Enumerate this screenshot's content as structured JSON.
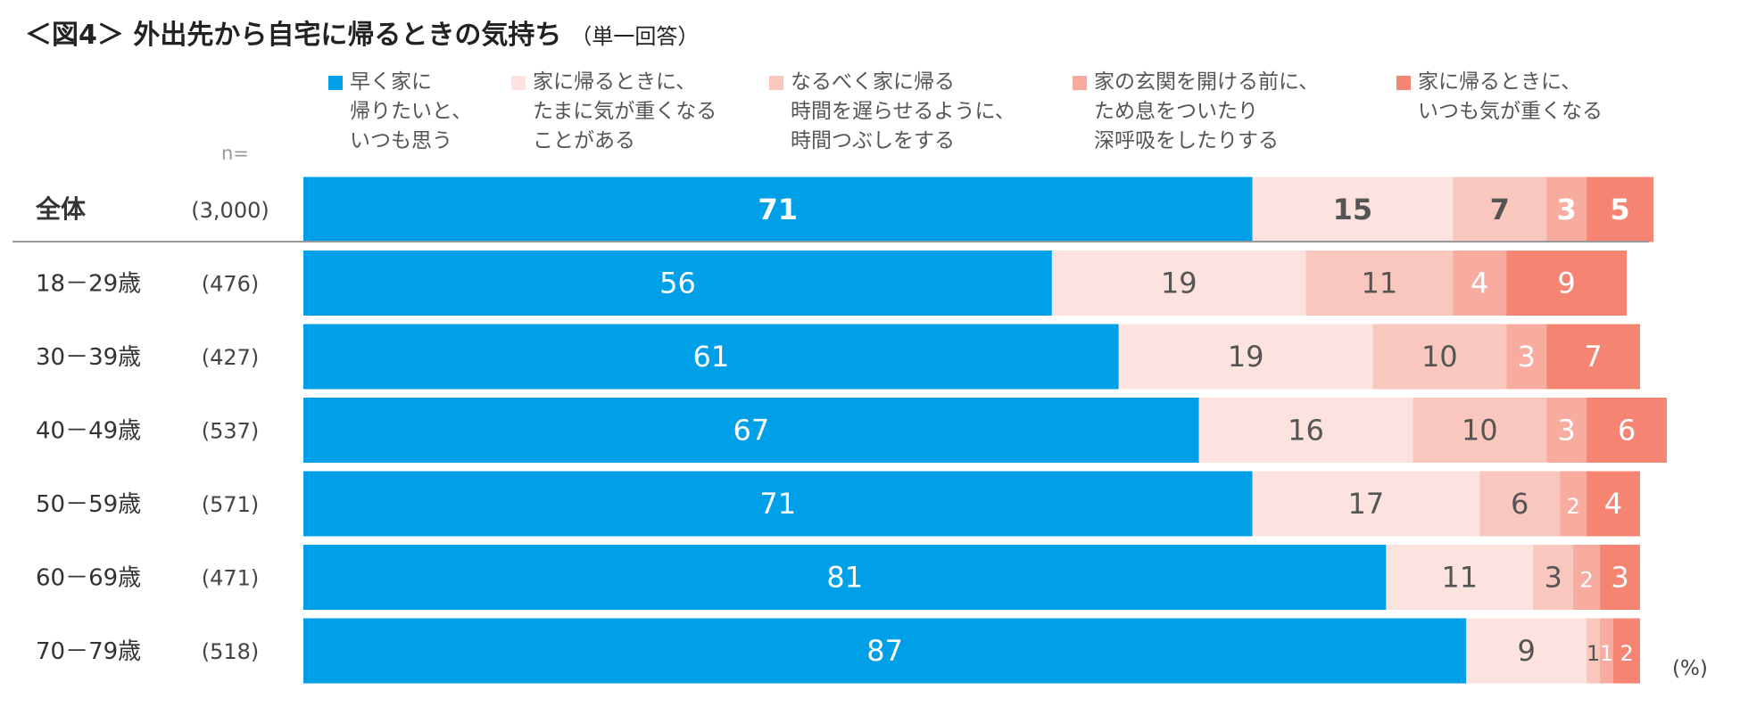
{
  "chart_data": {
    "type": "bar",
    "orientation": "horizontal",
    "stacked": true,
    "title": "＜図4＞ 外出先から自宅に帰るときの気持ち",
    "subtitle": "（単一回答）",
    "n_header": "n=",
    "unit": "(%)",
    "xlim": [
      0,
      100
    ],
    "categories": [
      "全体",
      "18－29歳",
      "30－39歳",
      "40－49歳",
      "50－59歳",
      "60－69歳",
      "70－79歳"
    ],
    "n_labels": [
      "(3,000)",
      "(476)",
      "(427)",
      "(537)",
      "(571)",
      "(471)",
      "(518)"
    ],
    "series": [
      {
        "name": "早く家に\n帰りたいと、\nいつも思う",
        "color": "#00A0E9",
        "label_color": "#ffffff",
        "values": [
          71,
          56,
          61,
          67,
          71,
          81,
          87
        ]
      },
      {
        "name": "家に帰るときに、\nたまに気が重くなる\nことがある",
        "color": "#FCE3DF",
        "label_color": "#555555",
        "values": [
          15,
          19,
          19,
          16,
          17,
          11,
          9
        ]
      },
      {
        "name": "なるべく家に帰る\n時間を遅らせるように、\n時間つぶしをする",
        "color": "#F9C7BE",
        "label_color": "#555555",
        "values": [
          7,
          11,
          10,
          10,
          6,
          3,
          1
        ]
      },
      {
        "name": "家の玄関を開ける前に、\nため息をついたり\n深呼吸をしたりする",
        "color": "#F7AC9F",
        "label_color": "#ffffff",
        "values": [
          3,
          4,
          3,
          3,
          2,
          2,
          1
        ]
      },
      {
        "name": "家に帰るときに、\nいつも気が重くなる",
        "color": "#F58572",
        "label_color": "#ffffff",
        "values": [
          5,
          9,
          7,
          6,
          4,
          3,
          2
        ]
      }
    ]
  }
}
